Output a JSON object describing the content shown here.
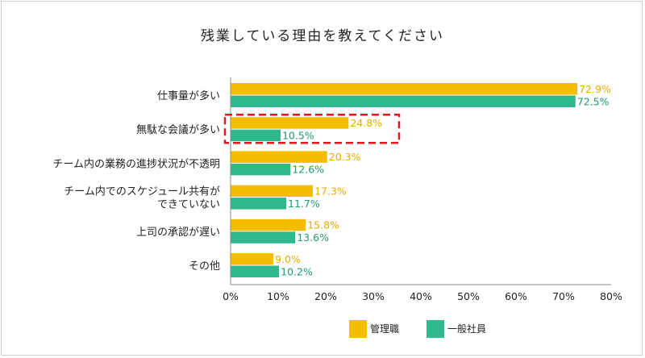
{
  "chart_data": {
    "type": "bar",
    "orientation": "horizontal",
    "title": "残業している理由を教えてください",
    "categories": [
      "仕事量が多い",
      "無駄な会議が多い",
      "チーム内の業務の進捗状況が不透明",
      "チーム内でのスケジュール共有が\nできていない",
      "上司の承認が遅い",
      "その他"
    ],
    "series": [
      {
        "name": "管理職",
        "color": "#F5BD00",
        "label_color": "#E8AA00",
        "values": [
          72.9,
          24.8,
          20.3,
          17.3,
          15.8,
          9.0
        ],
        "labels": [
          "72.9%",
          "24.8%",
          "20.3%",
          "17.3%",
          "15.8%",
          "9.0%"
        ]
      },
      {
        "name": "一般社員",
        "color": "#2FB88D",
        "label_color": "#1E9A72",
        "values": [
          72.5,
          10.5,
          12.6,
          11.7,
          13.6,
          10.2
        ],
        "labels": [
          "72.5%",
          "10.5%",
          "12.6%",
          "11.7%",
          "13.6%",
          "10.2%"
        ]
      }
    ],
    "xlim": [
      0,
      80
    ],
    "xticks": [
      0,
      10,
      20,
      30,
      40,
      50,
      60,
      70,
      80
    ],
    "xtick_labels": [
      "0%",
      "10%",
      "20%",
      "30%",
      "40%",
      "50%",
      "60%",
      "70%",
      "80%"
    ],
    "grid": false,
    "legend": "bottom-center",
    "highlight": {
      "category_index": 1,
      "style": "red-dashed-box",
      "color": "#E8141B"
    }
  }
}
